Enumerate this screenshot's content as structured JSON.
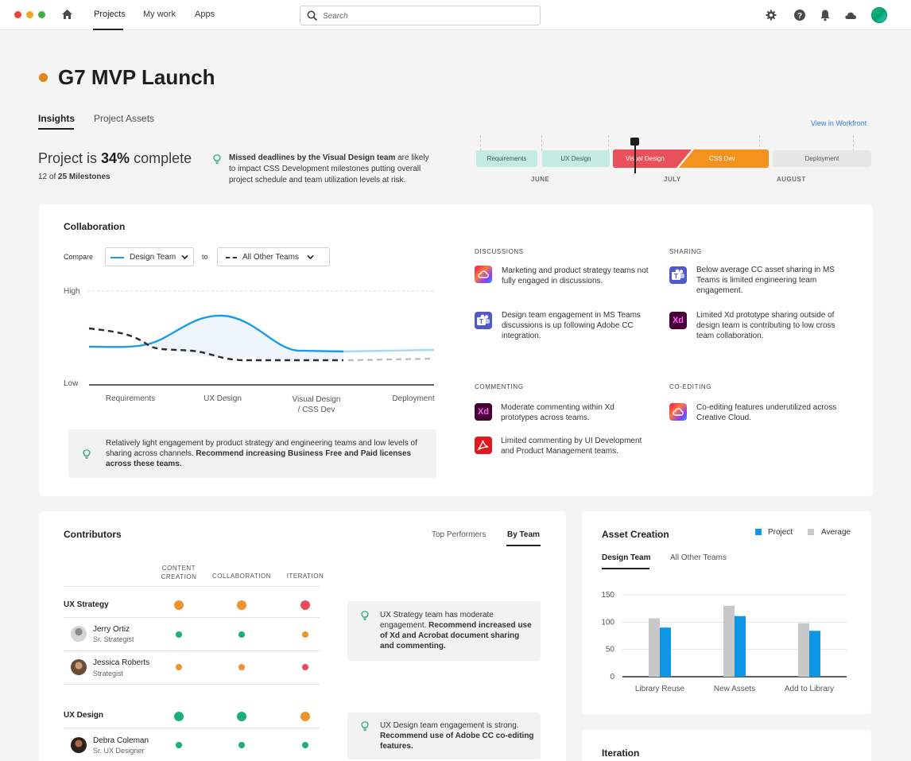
{
  "topbar": {
    "window_dots": [
      "#e8483a",
      "#f2a623",
      "#3fae4b"
    ],
    "nav": [
      "Projects",
      "My work",
      "Apps"
    ],
    "search_placeholder": "Search"
  },
  "project": {
    "title": "G7 MVP Launch",
    "status_color": "#e68619",
    "tabs": [
      "Insights",
      "Project Assets"
    ],
    "view_link": "View in Workfront",
    "progress_prefix": "Project is ",
    "progress_percent": "34%",
    "progress_suffix": " complete",
    "milestones_prefix": "12 of ",
    "milestones_total": "25 Milestones",
    "insight_bold": "Missed deadlines by the Visual Design team",
    "insight_rest": " are likely to impact CSS Development milestones putting overall project schedule and team utilization levels at risk."
  },
  "timeline": {
    "phases": [
      "Requirements",
      "UX Design",
      "Visual Design",
      "CSS Dev",
      "Deployment"
    ],
    "months": [
      "JUNE",
      "JULY",
      "AUGUST"
    ]
  },
  "collaboration": {
    "title": "Collaboration",
    "compare_label": "Compare",
    "primary": "Design Team",
    "to_label": "to",
    "secondary": "All Other Teams",
    "y_high": "High",
    "y_low": "Low",
    "x_labels": [
      "Requirements",
      "UX Design",
      "Visual Design\n/ CSS Dev",
      "Deployment"
    ],
    "recommendation_plain": "Relatively light engagement by product strategy and engineering teams and low levels of sharing across channels. ",
    "recommendation_bold": "Recommend increasing Business Free and Paid licenses across these teams.",
    "sections": {
      "discussions": {
        "label": "DISCUSSIONS",
        "items": [
          {
            "icon": "creative-cloud-icon",
            "text": "Marketing and product strategy teams not fully engaged in discussions."
          },
          {
            "icon": "ms-teams-icon",
            "text": "Design team engagement in MS Teams discussions is up following  Adobe CC integration."
          }
        ]
      },
      "sharing": {
        "label": "SHARING",
        "items": [
          {
            "icon": "ms-teams-icon",
            "text": "Below average CC asset sharing in MS Teams is limited engineering team engagement."
          },
          {
            "icon": "adobe-xd-icon",
            "text": "Limited Xd prototype sharing outside of design team is contributing to low cross team collaboration."
          }
        ]
      },
      "commenting": {
        "label": "COMMENTING",
        "items": [
          {
            "icon": "adobe-xd-icon",
            "text": "Moderate commenting within Xd prototypes across teams."
          },
          {
            "icon": "acrobat-icon",
            "text": "Limited commenting  by UI Development and Product Management teams."
          }
        ]
      },
      "coediting": {
        "label": "CO-EDITING",
        "items": [
          {
            "icon": "creative-cloud-icon",
            "text": "Co-editing features underutilized across Creative Cloud."
          }
        ]
      }
    },
    "xd_glyph": "Xd"
  },
  "contributors": {
    "title": "Contributors",
    "toggle": [
      "Top Performers",
      "By Team"
    ],
    "columns": [
      "CONTENT\nCREATION",
      "COLLABORATION",
      "ITERATION"
    ],
    "status_colors": {
      "orange": "#f0932b",
      "green": "#1aaf7a",
      "red": "#e94b5a"
    },
    "teams": [
      {
        "name": "UX Strategy",
        "status": [
          "orange",
          "orange",
          "red"
        ],
        "people": [
          {
            "name": "Jerry Ortiz",
            "role": "Sr. Strategist",
            "status": [
              "green",
              "green",
              "orange"
            ]
          },
          {
            "name": "Jessica Roberts",
            "role": "Strategist",
            "status": [
              "orange",
              "orange",
              "red"
            ]
          }
        ],
        "insight_plain": "UX Strategy team has moderate engagement. ",
        "insight_bold": "Recommend increased use of Xd and Acrobat document sharing and commenting."
      },
      {
        "name": "UX Design",
        "status": [
          "green",
          "green",
          "orange"
        ],
        "people": [
          {
            "name": "Debra Coleman",
            "role": "Sr. UX Designer",
            "status": [
              "green",
              "green",
              "green"
            ]
          }
        ],
        "insight_plain": "UX Design team engagement is strong. ",
        "insight_bold": "Recommend use of Adobe CC co-editing features."
      }
    ]
  },
  "asset_creation": {
    "title": "Asset Creation",
    "legend": [
      "Project",
      "Average"
    ],
    "tabs": [
      "Design Team",
      "All Other Teams"
    ],
    "colors": {
      "project": "#0d96e6",
      "average": "#c8c8c8"
    },
    "chart_data": {
      "type": "bar",
      "categories": [
        "Library Reuse",
        "New Assets",
        "Add to Library"
      ],
      "series": [
        {
          "name": "Average",
          "values": [
            107,
            130,
            98
          ]
        },
        {
          "name": "Project",
          "values": [
            90,
            111,
            84
          ]
        }
      ],
      "ylim": [
        0,
        150
      ],
      "yticks": [
        0,
        50,
        100,
        150
      ]
    }
  },
  "iteration": {
    "title": "Iteration"
  }
}
